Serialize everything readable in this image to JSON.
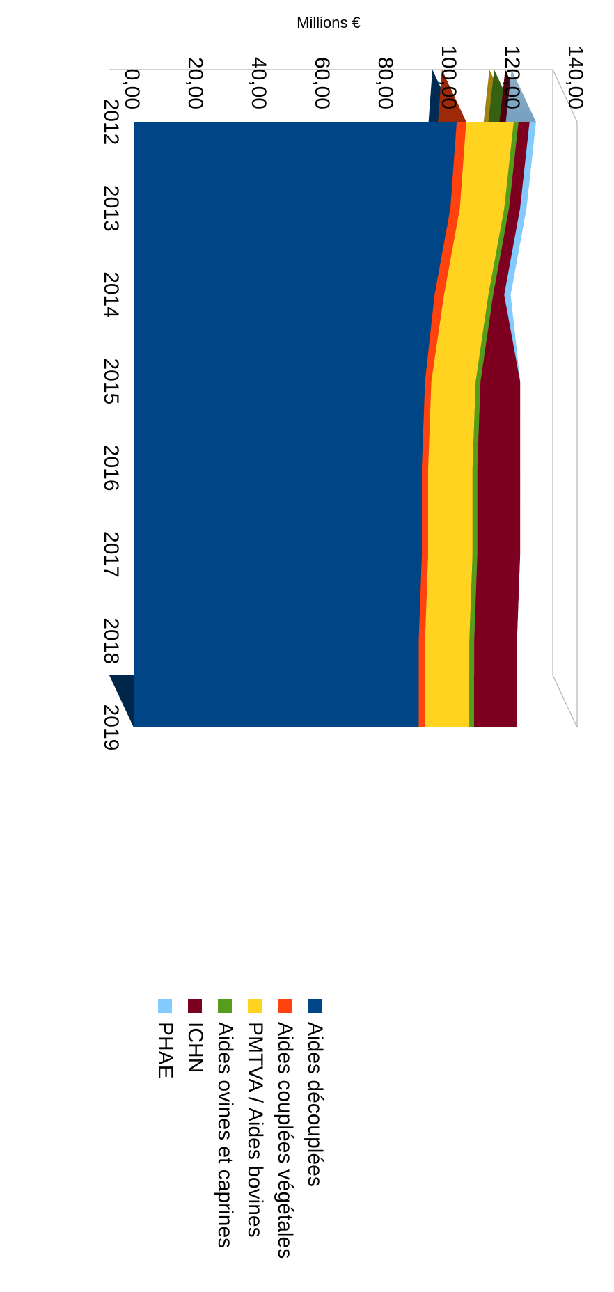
{
  "chart_data": {
    "type": "area",
    "stacked": true,
    "three_d": true,
    "rotation": "rotated 90° clockwise (values axis on the left edge, years along the bottom)",
    "title": "",
    "ylabel": "Millions €",
    "xlabel": "",
    "ylim": [
      0,
      140
    ],
    "yticks": [
      "0,00",
      "20,00",
      "40,00",
      "60,00",
      "80,00",
      "100,00",
      "120,00",
      "140,00"
    ],
    "categories": [
      "2012",
      "2013",
      "2014",
      "2015",
      "2016",
      "2017",
      "2018",
      "2019"
    ],
    "legend_position": "right",
    "legend": [
      "PHAE",
      "ICHN",
      "Aides ovines et caprines",
      "PMTVA / Aides bovines",
      "Aides couplées végétales",
      "Aides découplées"
    ],
    "series": [
      {
        "name": "Aides découplées",
        "color": "#004586",
        "values": [
          102,
          100,
          95,
          92,
          91,
          91,
          90,
          90
        ]
      },
      {
        "name": "Aides couplées végétales",
        "color": "#ff420e",
        "values": [
          3,
          3,
          3,
          2,
          2,
          2,
          2,
          2
        ]
      },
      {
        "name": "PMTVA / Aides bovines",
        "color": "#ffd320",
        "values": [
          15,
          14,
          14,
          14,
          14,
          14,
          14,
          14
        ]
      },
      {
        "name": "Aides ovines et caprines",
        "color": "#579d1c",
        "values": [
          1.5,
          1.5,
          1.5,
          1.5,
          1.5,
          1.5,
          1.5,
          1.5
        ]
      },
      {
        "name": "ICHN",
        "color": "#7e0021",
        "values": [
          3.5,
          3.5,
          3.5,
          12.5,
          13.5,
          13.5,
          13.5,
          13.5
        ]
      },
      {
        "name": "PHAE",
        "color": "#83caff",
        "values": [
          2,
          2,
          2,
          0,
          0,
          0,
          0,
          0
        ]
      }
    ]
  }
}
